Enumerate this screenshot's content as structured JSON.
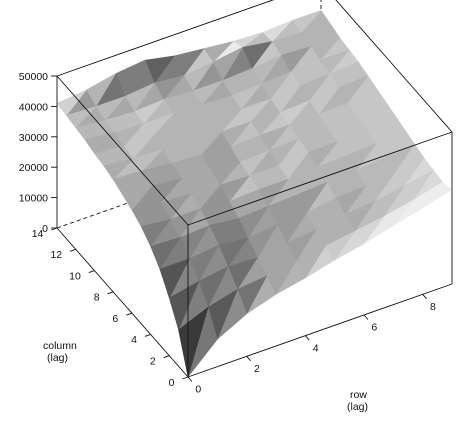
{
  "chart_data": {
    "type": "surface3d",
    "title": "",
    "row_axis": {
      "label_lines": [
        "row",
        "(lag)"
      ],
      "ticks": [
        "0",
        "2",
        "4",
        "6",
        "8"
      ],
      "range": [
        0,
        9
      ]
    },
    "column_axis": {
      "label_lines": [
        "column",
        "(lag)"
      ],
      "ticks": [
        "0",
        "2",
        "4",
        "6",
        "8",
        "10",
        "12",
        "14"
      ],
      "range": [
        0,
        14
      ]
    },
    "z_axis": {
      "label": "",
      "ticks": [
        "0",
        "10000",
        "20000",
        "30000",
        "40000",
        "50000"
      ],
      "range": [
        0,
        50000
      ]
    },
    "shading": "grayscale",
    "rows": [
      0,
      1,
      2,
      3,
      4,
      5,
      6,
      7,
      8,
      9
    ],
    "columns": [
      0,
      1,
      2,
      3,
      4,
      5,
      6,
      7,
      8,
      9,
      10,
      11,
      12,
      13,
      14
    ],
    "z": [
      [
        0,
        12000,
        19000,
        25000,
        29000,
        32000,
        34000,
        35500,
        37000,
        38000,
        38500,
        39500,
        40000,
        40500,
        41000
      ],
      [
        9000,
        16000,
        21000,
        25000,
        28500,
        31000,
        33000,
        35000,
        36500,
        37000,
        37500,
        38500,
        39000,
        40000,
        42000
      ],
      [
        14000,
        18500,
        22500,
        26000,
        29000,
        31000,
        32500,
        34000,
        35500,
        36500,
        37500,
        38000,
        38500,
        40000,
        44000
      ],
      [
        17000,
        19500,
        22000,
        25000,
        28000,
        30000,
        32000,
        33500,
        35000,
        36000,
        37000,
        38000,
        39000,
        41000,
        45000
      ],
      [
        19000,
        21000,
        23500,
        26000,
        28500,
        30500,
        31500,
        32500,
        34000,
        35500,
        36500,
        37500,
        38500,
        40000,
        43000
      ],
      [
        21500,
        22500,
        24500,
        26500,
        29000,
        30500,
        31500,
        33000,
        34500,
        35500,
        36000,
        37000,
        38500,
        41000,
        42000
      ],
      [
        23500,
        24000,
        26000,
        28000,
        29500,
        31000,
        32500,
        33500,
        34500,
        35000,
        36000,
        37500,
        39000,
        42500,
        41000
      ],
      [
        26000,
        25500,
        27000,
        28500,
        30000,
        31500,
        32500,
        33500,
        34500,
        35500,
        37000,
        38000,
        40000,
        41000,
        40500
      ],
      [
        28500,
        27500,
        28500,
        29500,
        31000,
        32000,
        33000,
        34000,
        35000,
        36500,
        37500,
        38500,
        39500,
        40500,
        41000
      ],
      [
        31000,
        30000,
        30500,
        31000,
        32000,
        33000,
        34000,
        35000,
        36000,
        37000,
        38000,
        38500,
        39000,
        40000,
        41000
      ]
    ]
  }
}
